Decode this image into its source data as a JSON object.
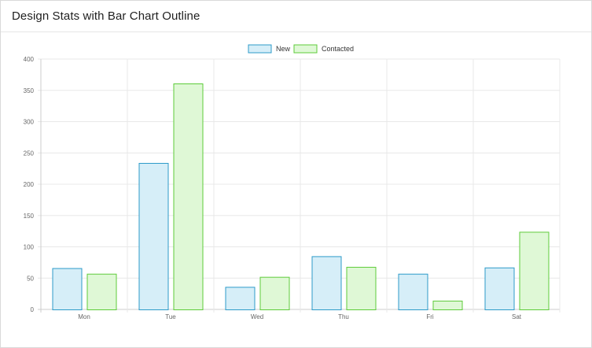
{
  "header": {
    "title": "Design Stats with Bar Chart Outline"
  },
  "colors": {
    "new_fill": "#d6eef8",
    "new_stroke": "#2d9bc9",
    "contacted_fill": "#dff8d6",
    "contacted_stroke": "#5ecb3a",
    "grid": "#e8e8e8",
    "axis": "#cccccc"
  },
  "chart_data": {
    "type": "bar",
    "title": "",
    "xlabel": "",
    "ylabel": "",
    "categories": [
      "Mon",
      "Tue",
      "Wed",
      "Thu",
      "Fri",
      "Sat"
    ],
    "series": [
      {
        "name": "New",
        "values": [
          66,
          234,
          36,
          85,
          57,
          67
        ]
      },
      {
        "name": "Contacted",
        "values": [
          57,
          361,
          52,
          68,
          14,
          124
        ]
      }
    ],
    "ylim": [
      0,
      400
    ],
    "yticks": [
      0,
      50,
      100,
      150,
      200,
      250,
      300,
      350,
      400
    ],
    "grid": true,
    "legend_position": "top-center"
  }
}
